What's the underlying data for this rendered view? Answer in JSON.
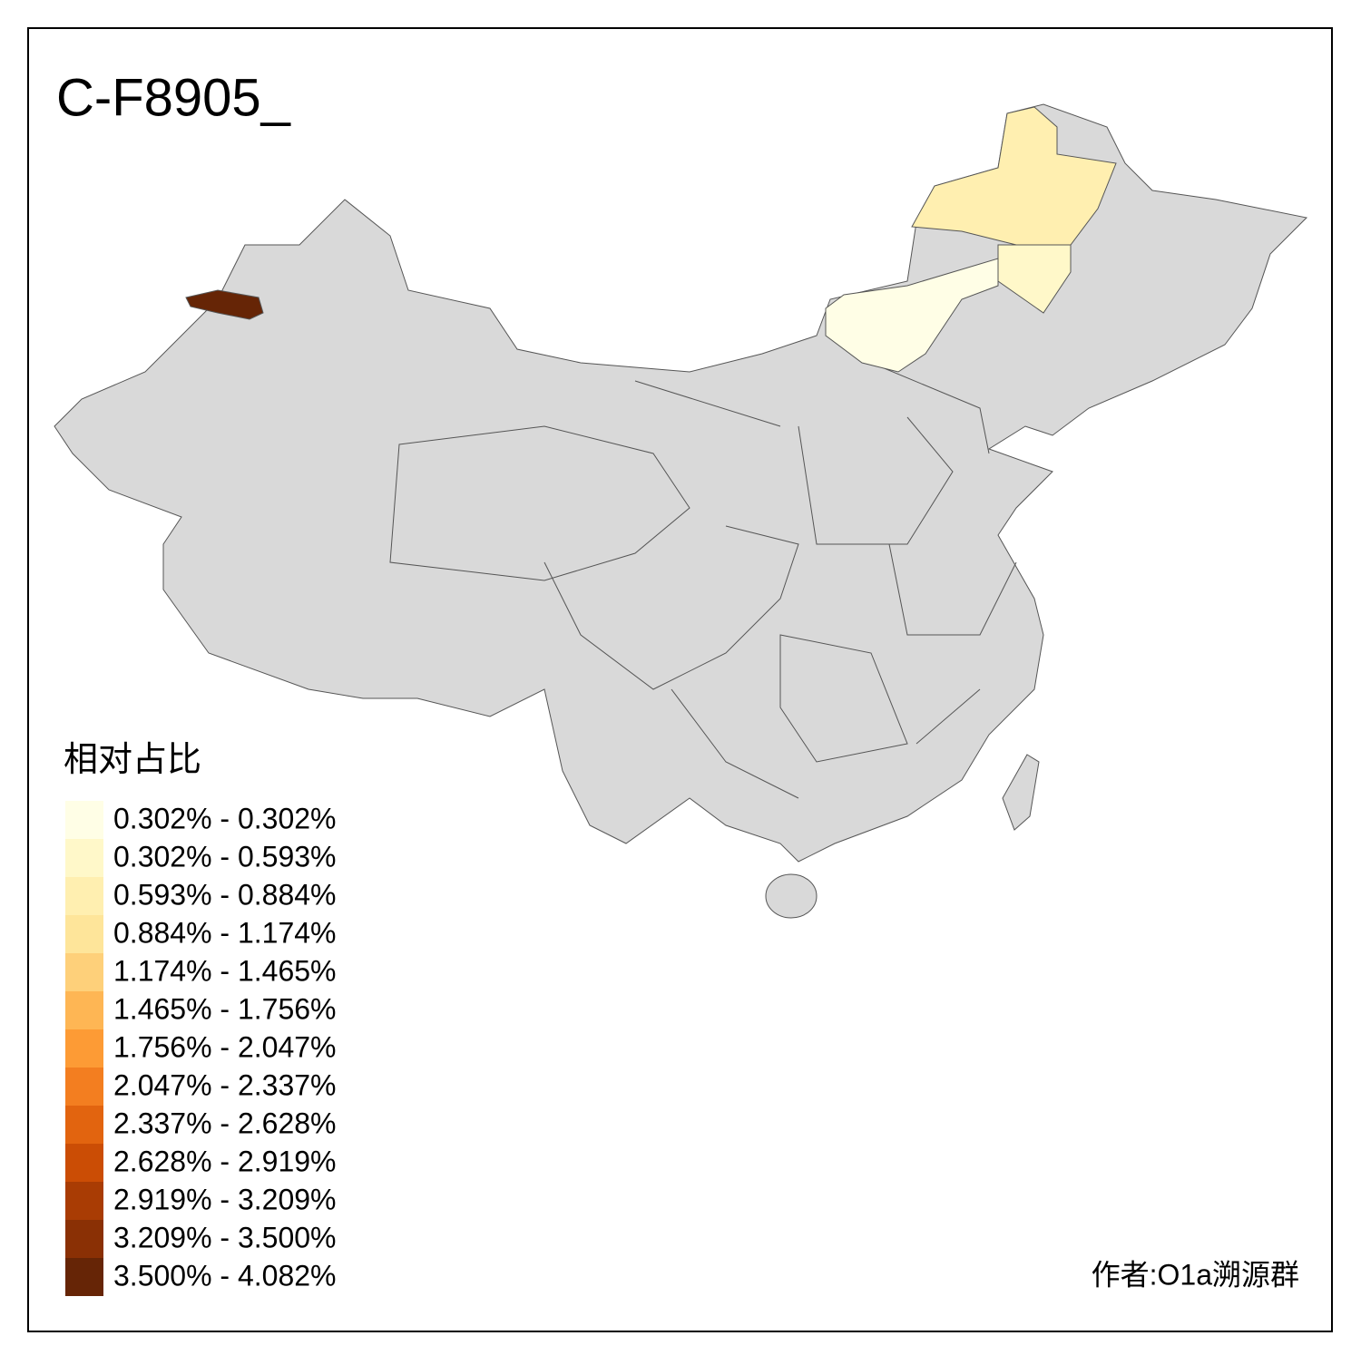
{
  "title": "C-F8905_",
  "legend": {
    "title": "相对占比",
    "items": [
      {
        "label": "0.302% - 0.302%",
        "color": "#fffee6"
      },
      {
        "label": "0.302% - 0.593%",
        "color": "#fff8c9"
      },
      {
        "label": "0.593% - 0.884%",
        "color": "#ffefb0"
      },
      {
        "label": "0.884% - 1.174%",
        "color": "#fee59a"
      },
      {
        "label": "1.174% - 1.465%",
        "color": "#fed07a"
      },
      {
        "label": "1.465% - 1.756%",
        "color": "#feb654"
      },
      {
        "label": "1.756% - 2.047%",
        "color": "#fd9b35"
      },
      {
        "label": "2.047% - 2.337%",
        "color": "#f37e20"
      },
      {
        "label": "2.337% - 2.628%",
        "color": "#e2640f"
      },
      {
        "label": "2.628% - 2.919%",
        "color": "#cb4d05"
      },
      {
        "label": "2.919% - 3.209%",
        "color": "#a93c04"
      },
      {
        "label": "3.209% - 3.500%",
        "color": "#8a3005"
      },
      {
        "label": "3.500% - 4.082%",
        "color": "#662506"
      }
    ]
  },
  "author": "作者:O1a溯源群"
}
